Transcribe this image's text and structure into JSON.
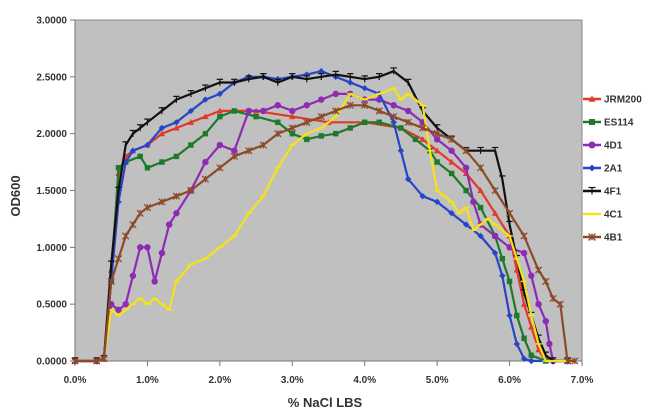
{
  "chart_data": {
    "type": "line",
    "title": "",
    "xlabel": "% NaCl LBS",
    "ylabel": "OD600",
    "xlim": [
      0.0,
      7.0
    ],
    "ylim": [
      0.0,
      3.0
    ],
    "x_ticks": [
      "0.0%",
      "1.0%",
      "2.0%",
      "3.0%",
      "4.0%",
      "5.0%",
      "6.0%",
      "7.0%"
    ],
    "y_ticks": [
      "0.0000",
      "0.5000",
      "1.0000",
      "1.5000",
      "2.0000",
      "2.5000",
      "3.0000"
    ],
    "plot_background": "#c0c0c0",
    "grid": false,
    "legend_position": "right",
    "series": [
      {
        "name": "JRM200",
        "color": "#e03a2a",
        "marker": "triangle",
        "points": [
          [
            0.0,
            0.0
          ],
          [
            0.3,
            0.0
          ],
          [
            0.4,
            0.02
          ],
          [
            0.5,
            0.8
          ],
          [
            0.6,
            1.65
          ],
          [
            0.7,
            1.8
          ],
          [
            0.8,
            1.85
          ],
          [
            1.0,
            1.9
          ],
          [
            1.2,
            2.0
          ],
          [
            1.4,
            2.05
          ],
          [
            1.6,
            2.1
          ],
          [
            1.8,
            2.15
          ],
          [
            2.0,
            2.2
          ],
          [
            2.5,
            2.2
          ],
          [
            3.0,
            2.15
          ],
          [
            3.5,
            2.1
          ],
          [
            4.0,
            2.1
          ],
          [
            4.5,
            2.05
          ],
          [
            4.8,
            1.95
          ],
          [
            5.0,
            1.85
          ],
          [
            5.2,
            1.75
          ],
          [
            5.4,
            1.65
          ],
          [
            5.6,
            1.5
          ],
          [
            5.8,
            1.3
          ],
          [
            6.0,
            1.1
          ],
          [
            6.1,
            0.8
          ],
          [
            6.2,
            0.5
          ],
          [
            6.3,
            0.3
          ],
          [
            6.4,
            0.1
          ],
          [
            6.5,
            0.0
          ],
          [
            6.8,
            0.0
          ]
        ]
      },
      {
        "name": "ES114",
        "color": "#1d7a2a",
        "marker": "square",
        "points": [
          [
            0.0,
            0.0
          ],
          [
            0.3,
            0.0
          ],
          [
            0.4,
            0.02
          ],
          [
            0.5,
            0.7
          ],
          [
            0.6,
            1.7
          ],
          [
            0.7,
            1.75
          ],
          [
            0.9,
            1.8
          ],
          [
            1.0,
            1.7
          ],
          [
            1.2,
            1.75
          ],
          [
            1.4,
            1.8
          ],
          [
            1.6,
            1.9
          ],
          [
            1.8,
            2.0
          ],
          [
            2.0,
            2.15
          ],
          [
            2.2,
            2.2
          ],
          [
            2.5,
            2.15
          ],
          [
            2.8,
            2.1
          ],
          [
            3.0,
            2.0
          ],
          [
            3.2,
            1.95
          ],
          [
            3.4,
            1.98
          ],
          [
            3.6,
            2.0
          ],
          [
            3.8,
            2.05
          ],
          [
            4.0,
            2.1
          ],
          [
            4.2,
            2.1
          ],
          [
            4.5,
            2.05
          ],
          [
            4.7,
            1.95
          ],
          [
            4.9,
            1.85
          ],
          [
            5.0,
            1.75
          ],
          [
            5.2,
            1.65
          ],
          [
            5.4,
            1.5
          ],
          [
            5.6,
            1.35
          ],
          [
            5.8,
            1.1
          ],
          [
            5.9,
            0.9
          ],
          [
            6.0,
            0.7
          ],
          [
            6.1,
            0.4
          ],
          [
            6.2,
            0.2
          ],
          [
            6.3,
            0.05
          ],
          [
            6.5,
            0.0
          ],
          [
            6.8,
            0.0
          ]
        ]
      },
      {
        "name": "4D1",
        "color": "#8d2bb5",
        "marker": "circle",
        "points": [
          [
            0.0,
            0.0
          ],
          [
            0.3,
            0.0
          ],
          [
            0.4,
            0.02
          ],
          [
            0.5,
            0.5
          ],
          [
            0.6,
            0.45
          ],
          [
            0.7,
            0.5
          ],
          [
            0.8,
            0.75
          ],
          [
            0.9,
            1.0
          ],
          [
            1.0,
            1.0
          ],
          [
            1.1,
            0.7
          ],
          [
            1.2,
            0.95
          ],
          [
            1.3,
            1.2
          ],
          [
            1.4,
            1.3
          ],
          [
            1.6,
            1.5
          ],
          [
            1.8,
            1.75
          ],
          [
            2.0,
            1.9
          ],
          [
            2.2,
            1.85
          ],
          [
            2.4,
            2.2
          ],
          [
            2.6,
            2.2
          ],
          [
            2.8,
            2.25
          ],
          [
            3.0,
            2.2
          ],
          [
            3.2,
            2.25
          ],
          [
            3.4,
            2.3
          ],
          [
            3.6,
            2.35
          ],
          [
            3.8,
            2.35
          ],
          [
            4.0,
            2.3
          ],
          [
            4.2,
            2.3
          ],
          [
            4.4,
            2.25
          ],
          [
            4.6,
            2.2
          ],
          [
            4.8,
            2.1
          ],
          [
            5.0,
            1.95
          ],
          [
            5.2,
            1.85
          ],
          [
            5.4,
            1.7
          ],
          [
            5.5,
            1.4
          ],
          [
            5.6,
            1.2
          ],
          [
            5.8,
            1.1
          ],
          [
            6.0,
            1.0
          ],
          [
            6.2,
            0.95
          ],
          [
            6.3,
            0.75
          ],
          [
            6.4,
            0.5
          ],
          [
            6.5,
            0.35
          ],
          [
            6.55,
            0.15
          ],
          [
            6.6,
            0.0
          ],
          [
            6.8,
            0.0
          ]
        ]
      },
      {
        "name": "2A1",
        "color": "#2845c7",
        "marker": "diamond",
        "points": [
          [
            0.0,
            0.0
          ],
          [
            0.3,
            0.0
          ],
          [
            0.4,
            0.02
          ],
          [
            0.5,
            0.7
          ],
          [
            0.6,
            1.4
          ],
          [
            0.7,
            1.75
          ],
          [
            0.8,
            1.85
          ],
          [
            1.0,
            1.9
          ],
          [
            1.2,
            2.05
          ],
          [
            1.4,
            2.1
          ],
          [
            1.6,
            2.2
          ],
          [
            1.8,
            2.3
          ],
          [
            2.0,
            2.35
          ],
          [
            2.2,
            2.45
          ],
          [
            2.4,
            2.5
          ],
          [
            2.6,
            2.5
          ],
          [
            2.8,
            2.48
          ],
          [
            3.0,
            2.5
          ],
          [
            3.2,
            2.52
          ],
          [
            3.4,
            2.55
          ],
          [
            3.6,
            2.5
          ],
          [
            3.8,
            2.45
          ],
          [
            4.0,
            2.4
          ],
          [
            4.2,
            2.35
          ],
          [
            4.4,
            2.1
          ],
          [
            4.5,
            1.85
          ],
          [
            4.6,
            1.6
          ],
          [
            4.8,
            1.45
          ],
          [
            5.0,
            1.4
          ],
          [
            5.2,
            1.3
          ],
          [
            5.4,
            1.2
          ],
          [
            5.6,
            1.1
          ],
          [
            5.8,
            0.95
          ],
          [
            5.9,
            0.75
          ],
          [
            6.0,
            0.4
          ],
          [
            6.1,
            0.15
          ],
          [
            6.2,
            0.02
          ],
          [
            6.3,
            0.0
          ],
          [
            6.8,
            0.0
          ]
        ]
      },
      {
        "name": "4F1",
        "color": "#111111",
        "marker": "cross",
        "points": [
          [
            0.0,
            0.0
          ],
          [
            0.3,
            0.0
          ],
          [
            0.4,
            0.02
          ],
          [
            0.5,
            0.85
          ],
          [
            0.6,
            1.5
          ],
          [
            0.7,
            1.9
          ],
          [
            0.8,
            2.0
          ],
          [
            0.9,
            2.05
          ],
          [
            1.0,
            2.1
          ],
          [
            1.2,
            2.2
          ],
          [
            1.4,
            2.3
          ],
          [
            1.6,
            2.35
          ],
          [
            1.8,
            2.4
          ],
          [
            2.0,
            2.45
          ],
          [
            2.2,
            2.45
          ],
          [
            2.4,
            2.48
          ],
          [
            2.6,
            2.5
          ],
          [
            2.8,
            2.45
          ],
          [
            3.0,
            2.5
          ],
          [
            3.2,
            2.48
          ],
          [
            3.4,
            2.5
          ],
          [
            3.6,
            2.52
          ],
          [
            3.8,
            2.5
          ],
          [
            4.0,
            2.48
          ],
          [
            4.2,
            2.5
          ],
          [
            4.4,
            2.55
          ],
          [
            4.6,
            2.45
          ],
          [
            4.8,
            2.2
          ],
          [
            5.0,
            2.05
          ],
          [
            5.2,
            1.95
          ],
          [
            5.4,
            1.85
          ],
          [
            5.6,
            1.85
          ],
          [
            5.8,
            1.85
          ],
          [
            5.9,
            1.6
          ],
          [
            6.0,
            1.2
          ],
          [
            6.1,
            0.9
          ],
          [
            6.2,
            0.6
          ],
          [
            6.3,
            0.4
          ],
          [
            6.4,
            0.2
          ],
          [
            6.5,
            0.05
          ],
          [
            6.6,
            0.0
          ],
          [
            6.8,
            0.0
          ]
        ]
      },
      {
        "name": "4C1",
        "color": "#f5e21a",
        "marker": "dash",
        "points": [
          [
            0.0,
            0.0
          ],
          [
            0.3,
            0.0
          ],
          [
            0.4,
            0.02
          ],
          [
            0.5,
            0.45
          ],
          [
            0.6,
            0.4
          ],
          [
            0.7,
            0.45
          ],
          [
            0.8,
            0.5
          ],
          [
            0.9,
            0.55
          ],
          [
            1.0,
            0.5
          ],
          [
            1.1,
            0.55
          ],
          [
            1.2,
            0.5
          ],
          [
            1.3,
            0.45
          ],
          [
            1.4,
            0.7
          ],
          [
            1.6,
            0.85
          ],
          [
            1.8,
            0.9
          ],
          [
            2.0,
            1.0
          ],
          [
            2.2,
            1.1
          ],
          [
            2.4,
            1.3
          ],
          [
            2.6,
            1.45
          ],
          [
            2.8,
            1.7
          ],
          [
            3.0,
            1.9
          ],
          [
            3.2,
            2.0
          ],
          [
            3.4,
            2.05
          ],
          [
            3.6,
            2.15
          ],
          [
            3.8,
            2.35
          ],
          [
            4.0,
            2.3
          ],
          [
            4.2,
            2.35
          ],
          [
            4.4,
            2.4
          ],
          [
            4.5,
            2.3
          ],
          [
            4.6,
            2.35
          ],
          [
            4.8,
            2.25
          ],
          [
            4.9,
            1.85
          ],
          [
            5.0,
            1.5
          ],
          [
            5.1,
            1.45
          ],
          [
            5.2,
            1.4
          ],
          [
            5.3,
            1.3
          ],
          [
            5.4,
            1.35
          ],
          [
            5.5,
            1.15
          ],
          [
            5.6,
            1.2
          ],
          [
            5.7,
            1.25
          ],
          [
            5.8,
            1.2
          ],
          [
            6.0,
            1.1
          ],
          [
            6.1,
            0.9
          ],
          [
            6.2,
            0.7
          ],
          [
            6.3,
            0.4
          ],
          [
            6.4,
            0.15
          ],
          [
            6.5,
            0.0
          ],
          [
            6.8,
            0.0
          ]
        ]
      },
      {
        "name": "4B1",
        "color": "#8b4a2a",
        "marker": "asterisk",
        "points": [
          [
            0.0,
            0.0
          ],
          [
            0.3,
            0.0
          ],
          [
            0.4,
            0.02
          ],
          [
            0.5,
            0.7
          ],
          [
            0.6,
            0.9
          ],
          [
            0.7,
            1.1
          ],
          [
            0.8,
            1.2
          ],
          [
            0.9,
            1.3
          ],
          [
            1.0,
            1.35
          ],
          [
            1.2,
            1.4
          ],
          [
            1.4,
            1.45
          ],
          [
            1.6,
            1.5
          ],
          [
            1.8,
            1.6
          ],
          [
            2.0,
            1.7
          ],
          [
            2.2,
            1.8
          ],
          [
            2.4,
            1.85
          ],
          [
            2.6,
            1.9
          ],
          [
            2.8,
            2.0
          ],
          [
            3.0,
            2.05
          ],
          [
            3.2,
            2.1
          ],
          [
            3.4,
            2.15
          ],
          [
            3.6,
            2.2
          ],
          [
            3.8,
            2.25
          ],
          [
            4.0,
            2.25
          ],
          [
            4.2,
            2.2
          ],
          [
            4.4,
            2.15
          ],
          [
            4.6,
            2.1
          ],
          [
            4.8,
            2.05
          ],
          [
            5.0,
            2.0
          ],
          [
            5.2,
            1.95
          ],
          [
            5.4,
            1.85
          ],
          [
            5.6,
            1.7
          ],
          [
            5.8,
            1.5
          ],
          [
            6.0,
            1.3
          ],
          [
            6.2,
            1.1
          ],
          [
            6.4,
            0.8
          ],
          [
            6.5,
            0.7
          ],
          [
            6.6,
            0.55
          ],
          [
            6.7,
            0.5
          ],
          [
            6.8,
            0.0
          ],
          [
            6.9,
            0.0
          ]
        ]
      }
    ]
  }
}
